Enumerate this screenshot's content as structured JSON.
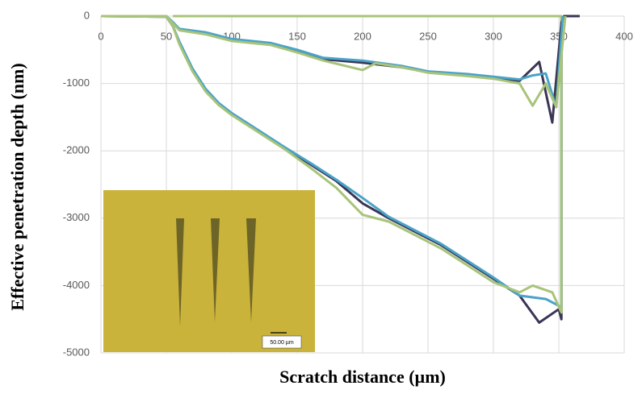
{
  "chart_data": {
    "type": "line",
    "xlabel": "Scratch distance (µm)",
    "ylabel": "Effective penetration depth (nm)",
    "xlim": [
      0,
      400
    ],
    "xticks": [
      0,
      50,
      100,
      150,
      200,
      250,
      300,
      350,
      400
    ],
    "ylim": [
      -5000,
      0
    ],
    "yticks": [
      0,
      -1000,
      -2000,
      -3000,
      -4000,
      -5000
    ],
    "grid": true,
    "annotations": [
      "50.00 µm"
    ],
    "series": [
      {
        "color": "#3b3556",
        "x": [
          0,
          50,
          55,
          60,
          70,
          80,
          90,
          100,
          120,
          140,
          160,
          180,
          200,
          220,
          240,
          260,
          280,
          300,
          320,
          335,
          350,
          352,
          352
        ],
        "values": [
          0,
          -10,
          -150,
          -400,
          -800,
          -1100,
          -1300,
          -1450,
          -1700,
          -1950,
          -2200,
          -2450,
          -2780,
          -3000,
          -3200,
          -3400,
          -3650,
          -3900,
          -4150,
          -4550,
          -4350,
          -4500,
          0
        ]
      },
      {
        "color": "#4aa3c8",
        "x": [
          0,
          50,
          55,
          60,
          70,
          80,
          90,
          100,
          120,
          140,
          160,
          180,
          200,
          220,
          240,
          260,
          280,
          300,
          320,
          340,
          350,
          352,
          352
        ],
        "values": [
          0,
          -10,
          -150,
          -380,
          -780,
          -1080,
          -1290,
          -1440,
          -1690,
          -1940,
          -2180,
          -2430,
          -2700,
          -2980,
          -3180,
          -3380,
          -3630,
          -3880,
          -4150,
          -4200,
          -4300,
          -4350,
          0
        ]
      },
      {
        "color": "#a8c47a",
        "x": [
          0,
          50,
          55,
          60,
          70,
          80,
          90,
          100,
          120,
          140,
          160,
          180,
          200,
          220,
          240,
          260,
          280,
          300,
          320,
          330,
          345,
          352,
          352,
          55
        ],
        "values": [
          0,
          -10,
          -150,
          -420,
          -820,
          -1120,
          -1320,
          -1470,
          -1720,
          -1970,
          -2250,
          -2550,
          -2950,
          -3050,
          -3250,
          -3450,
          -3700,
          -3950,
          -4100,
          -4000,
          -4100,
          -4400,
          0,
          0
        ]
      },
      {
        "color": "#3b3556",
        "x": [
          0,
          50,
          55,
          60,
          80,
          100,
          130,
          150,
          170,
          200,
          230,
          250,
          280,
          300,
          320,
          335,
          345,
          352,
          354,
          366
        ],
        "values": [
          0,
          0,
          -100,
          -200,
          -260,
          -360,
          -420,
          -520,
          -640,
          -690,
          -760,
          -830,
          -880,
          -920,
          -960,
          -680,
          -1580,
          -100,
          0,
          0
        ]
      },
      {
        "color": "#4aa3c8",
        "x": [
          0,
          50,
          55,
          60,
          80,
          100,
          130,
          150,
          170,
          200,
          230,
          250,
          280,
          300,
          320,
          330,
          340,
          348,
          353
        ],
        "values": [
          0,
          0,
          -90,
          -190,
          -240,
          -340,
          -400,
          -500,
          -620,
          -660,
          -740,
          -820,
          -860,
          -900,
          -940,
          -880,
          -850,
          -1350,
          0
        ]
      },
      {
        "color": "#a8c47a",
        "x": [
          0,
          50,
          55,
          60,
          80,
          100,
          130,
          150,
          170,
          200,
          210,
          230,
          250,
          280,
          300,
          320,
          330,
          340,
          348,
          355
        ],
        "values": [
          0,
          0,
          -110,
          -210,
          -270,
          -370,
          -430,
          -540,
          -660,
          -800,
          -700,
          -760,
          -840,
          -890,
          -930,
          -1000,
          -1330,
          -1000,
          -1350,
          0
        ]
      }
    ]
  }
}
